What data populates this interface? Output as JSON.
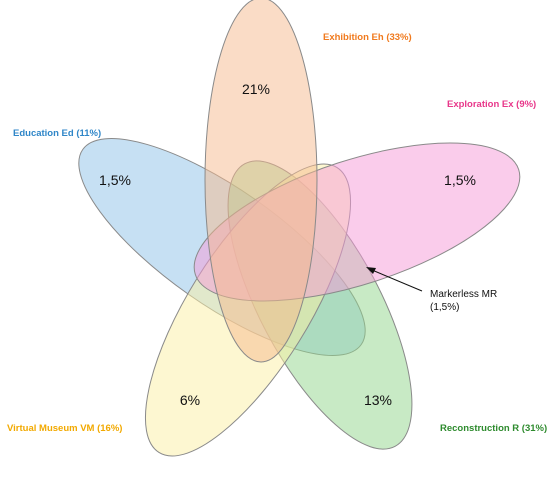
{
  "sets": [
    {
      "key": "exhibition",
      "label": "Exhibition Eh (33%)",
      "color": "#f07a1e",
      "fill": "#f5b98e",
      "value": "21%"
    },
    {
      "key": "exploration",
      "label": "Exploration Ex (9%)",
      "color": "#e8378a",
      "fill": "#f59ad8",
      "value": "1,5%"
    },
    {
      "key": "education",
      "label": "Education Ed (11%)",
      "color": "#2f86c8",
      "fill": "#8ec1e8",
      "value": "1,5%"
    },
    {
      "key": "virtual_museum",
      "label": "Virtual Museum VM (16%)",
      "color": "#f2a900",
      "fill": "#fbf0a4",
      "value": "6%"
    },
    {
      "key": "reconstruction",
      "label": "Reconstruction R (31%)",
      "color": "#2e8b2e",
      "fill": "#92d58c",
      "value": "13%"
    }
  ],
  "center_annotation": {
    "line1": "Markerless MR",
    "line2": "(1,5%)"
  }
}
